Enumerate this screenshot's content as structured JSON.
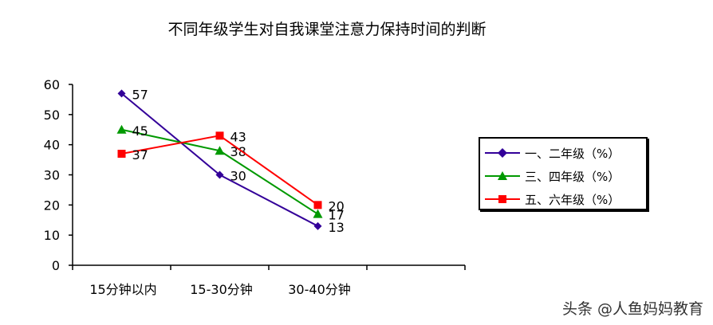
{
  "chart_data": {
    "type": "line",
    "title": "不同年级学生对自我课堂注意力保持时间的判断",
    "categories": [
      "15分钟以内",
      "15-30分钟",
      "30-40分钟"
    ],
    "category_slots": 4,
    "ylim": [
      0,
      60
    ],
    "yticks": [
      0,
      10,
      20,
      30,
      40,
      50,
      60
    ],
    "grid": false,
    "legend_position": "right",
    "series": [
      {
        "name": "一、二年级（%）",
        "values": [
          57,
          30,
          13
        ],
        "color": "#330099",
        "marker": "diamond"
      },
      {
        "name": "三、四年级（%）",
        "values": [
          45,
          38,
          17
        ],
        "color": "#009900",
        "marker": "triangle"
      },
      {
        "name": "五、六年级（%）",
        "values": [
          37,
          43,
          20
        ],
        "color": "#ff0000",
        "marker": "square"
      }
    ]
  },
  "watermark": "头条 @人鱼妈妈教育"
}
